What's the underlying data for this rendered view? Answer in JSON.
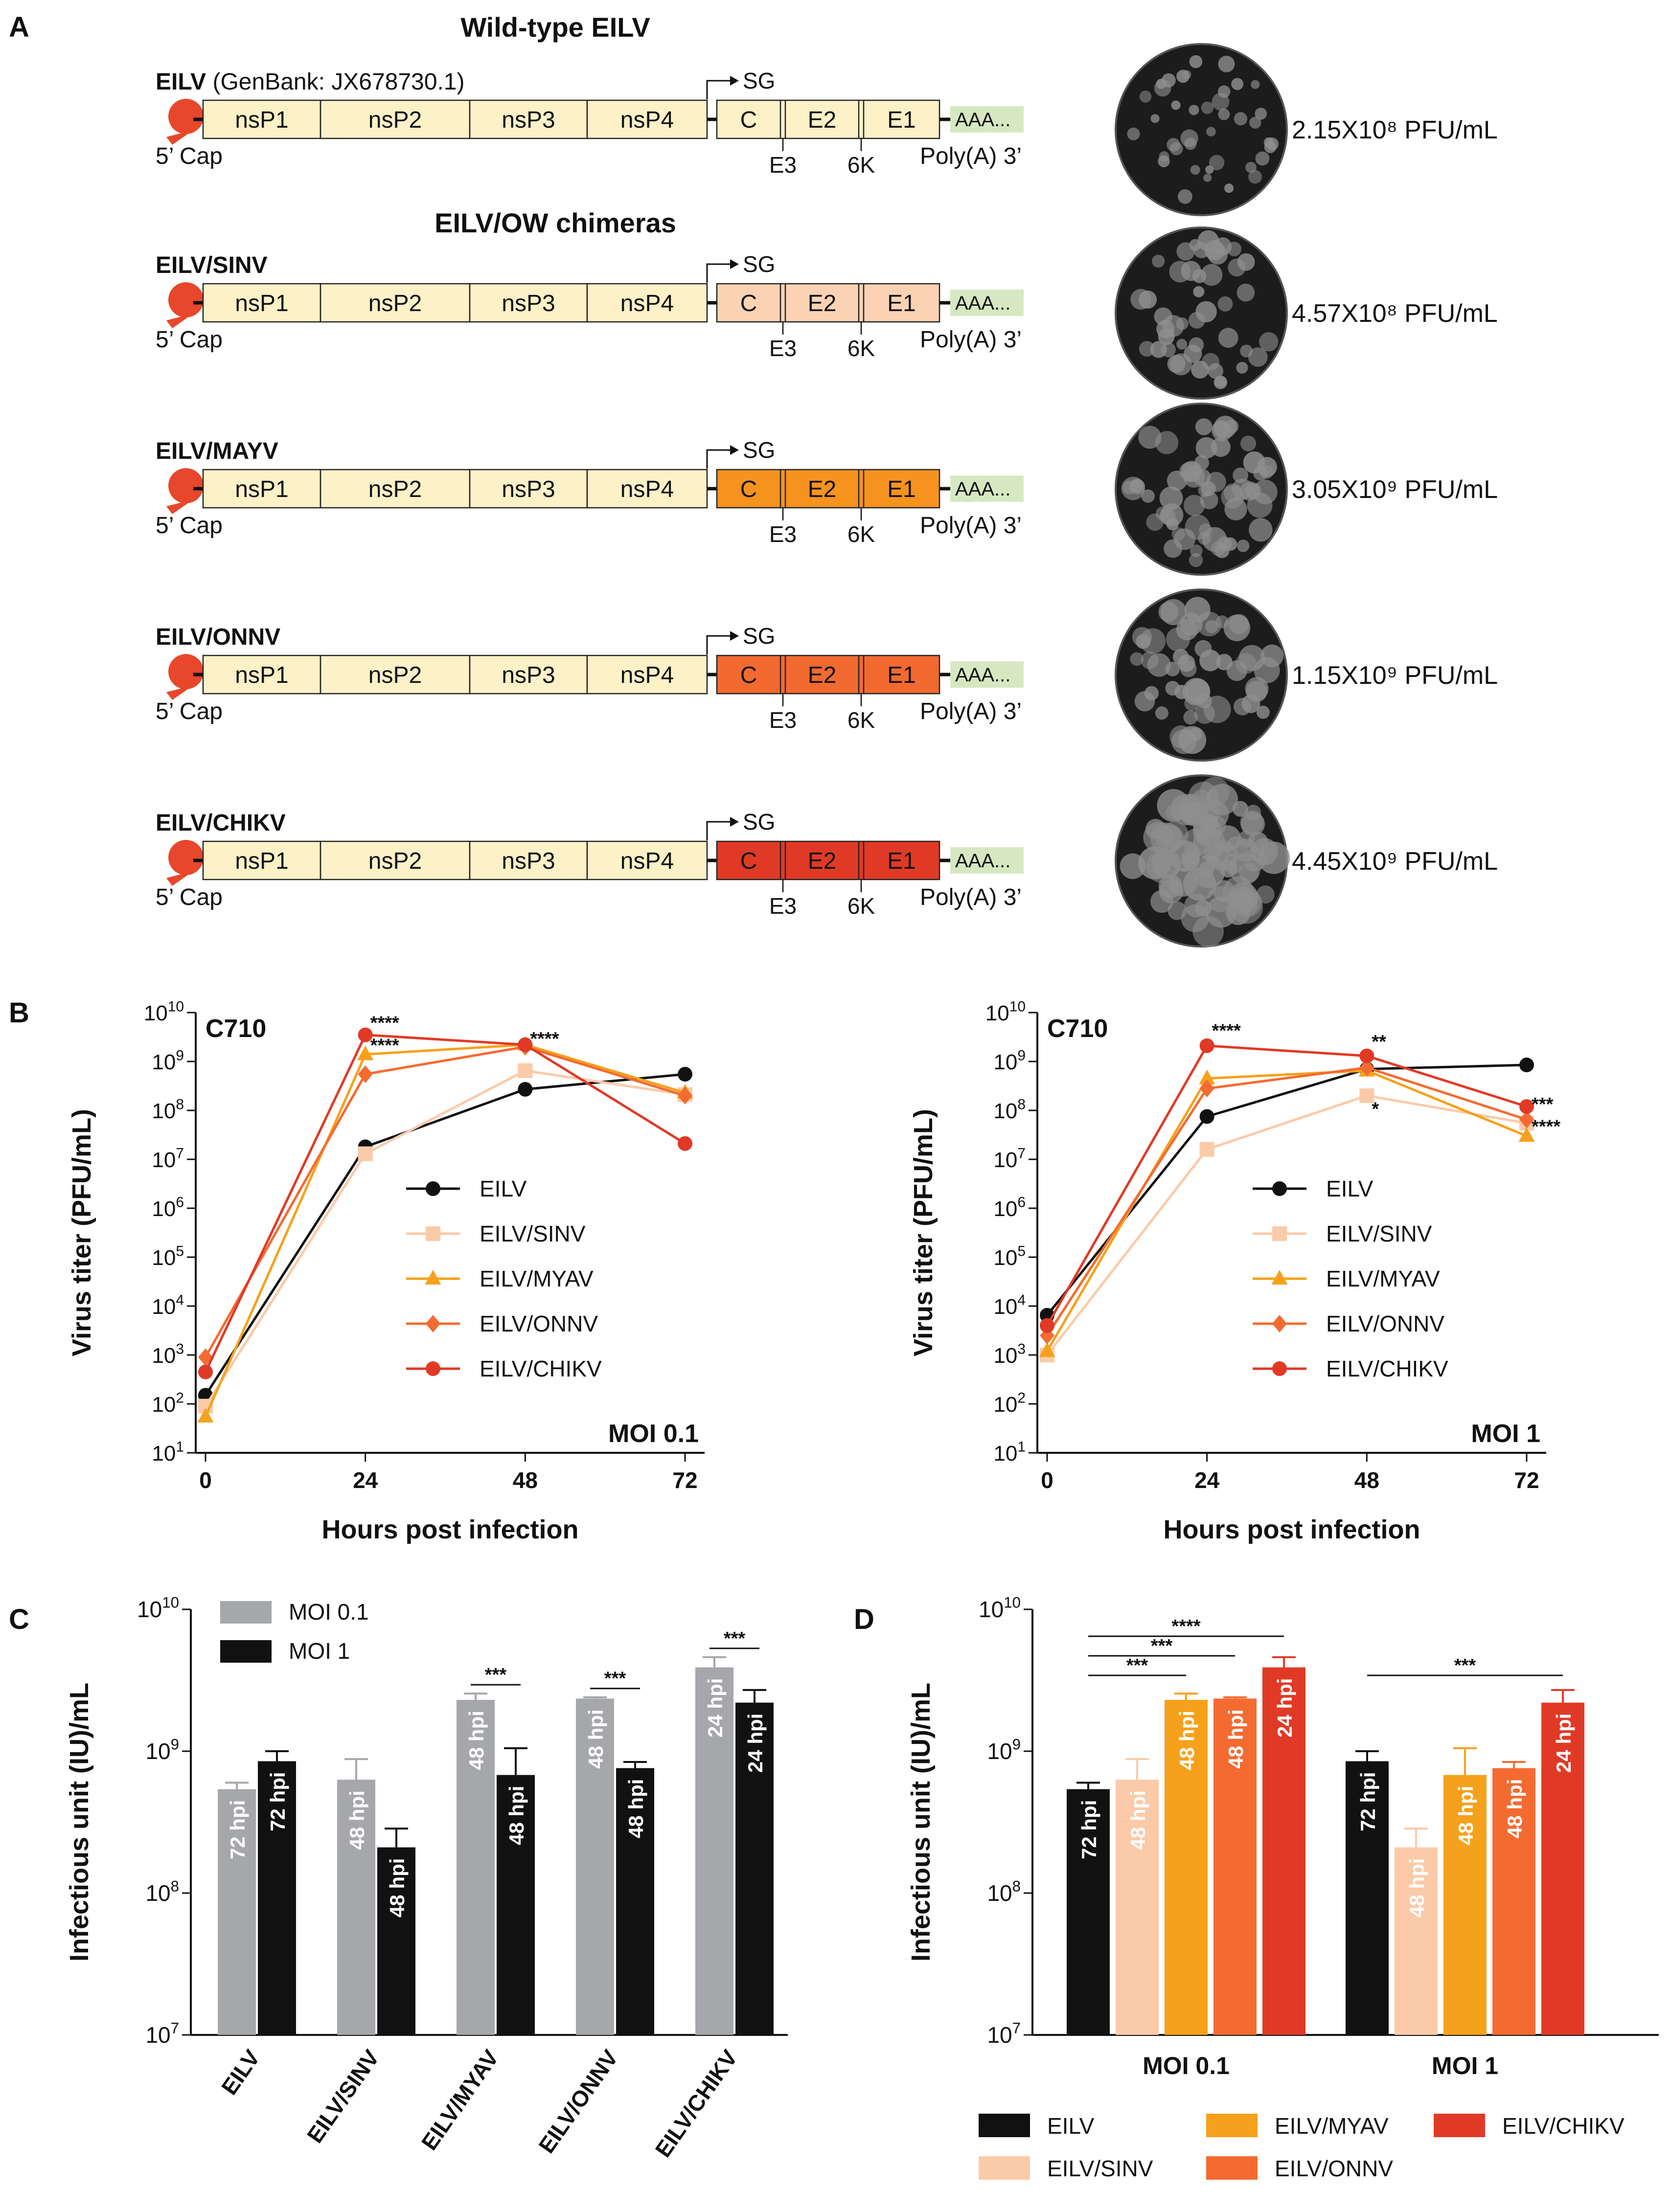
{
  "panel_labels": {
    "a": "A",
    "b": "B",
    "c": "C",
    "d": "D"
  },
  "genome": {
    "section_wt": "Wild-type EILV",
    "section_chimera": "EILV/OW chimeras",
    "wt_name": "EILV",
    "wt_genbank": "(GenBank: JX678730.1)",
    "cap_label": "5’ Cap",
    "polya_label": "Poly(A) 3’",
    "sg_label": "SG",
    "ns_genes": [
      "nsP1",
      "nsP2",
      "nsP3",
      "nsP4"
    ],
    "structural_genes": [
      "C",
      "E2",
      "E1"
    ],
    "below_labels": [
      "E3",
      "6K"
    ],
    "tail_label": "AAA...",
    "constructs": [
      {
        "name": "EILV",
        "color": "#fdf1c8",
        "titer": "2.15X10⁸ PFU/mL"
      },
      {
        "name": "EILV/SINV",
        "color": "#fbd3b4",
        "titer": "4.57X10⁸ PFU/mL"
      },
      {
        "name": "EILV/MAYV",
        "color": "#f6931e",
        "titer": "3.05X10⁹ PFU/mL"
      },
      {
        "name": "EILV/ONNV",
        "color": "#f26a30",
        "titer": "1.15X10⁹ PFU/mL"
      },
      {
        "name": "EILV/CHIKV",
        "color": "#e03a26",
        "titer": "4.45X10⁹ PFU/mL"
      }
    ]
  },
  "colors": {
    "EILV": "#111111",
    "EILV/SINV": "#fbcaa8",
    "EILV/MYAV": "#f6a11b",
    "EILV/ONNV": "#f46b31",
    "EILV/CHIKV": "#e03a26",
    "grey": "#a6a7ab",
    "black": "#111111"
  },
  "chart_data": [
    {
      "id": "B-left",
      "type": "line",
      "title": "C710",
      "annotation": "MOI 0.1",
      "xlabel": "Hours post infection",
      "ylabel": "Virus titer (PFU/mL)",
      "x": [
        0,
        24,
        48,
        72
      ],
      "xticks": [
        "0",
        "24",
        "48",
        "72"
      ],
      "yscale": "log",
      "ylim_exp": [
        1,
        10
      ],
      "series": [
        {
          "name": "EILV",
          "marker": "circle",
          "values": [
            150,
            18000000.0,
            270000000.0,
            550000000.0
          ]
        },
        {
          "name": "EILV/SINV",
          "marker": "square",
          "values": [
            90,
            13000000.0,
            650000000.0,
            210000000.0
          ]
        },
        {
          "name": "EILV/MYAV",
          "marker": "triangle",
          "values": [
            55,
            1400000000.0,
            2200000000.0,
            230000000.0
          ]
        },
        {
          "name": "EILV/ONNV",
          "marker": "diamond",
          "values": [
            900,
            550000000.0,
            2000000000.0,
            200000000.0
          ]
        },
        {
          "name": "EILV/CHIKV",
          "marker": "circle",
          "values": [
            450,
            3500000000.0,
            2200000000.0,
            21000000.0
          ]
        }
      ],
      "stars": [
        {
          "text": "****",
          "x": 24,
          "y": 4600000000.0
        },
        {
          "text": "****",
          "x": 24,
          "y": 1600000000.0
        },
        {
          "text": "****",
          "x": 48,
          "y": 2200000000.0
        }
      ]
    },
    {
      "id": "B-right",
      "type": "line",
      "title": "C710",
      "annotation": "MOI 1",
      "xlabel": "Hours post infection",
      "ylabel": "Virus titer (PFU/mL)",
      "x": [
        0,
        24,
        48,
        72
      ],
      "xticks": [
        "0",
        "24",
        "48",
        "72"
      ],
      "yscale": "log",
      "ylim_exp": [
        1,
        10
      ],
      "series": [
        {
          "name": "EILV",
          "marker": "circle",
          "values": [
            6500,
            75000000.0,
            700000000.0,
            850000000.0
          ]
        },
        {
          "name": "EILV/SINV",
          "marker": "square",
          "values": [
            1000,
            16000000.0,
            200000000.0,
            55000000.0
          ]
        },
        {
          "name": "EILV/MYAV",
          "marker": "triangle",
          "values": [
            1200,
            450000000.0,
            650000000.0,
            30000000.0
          ]
        },
        {
          "name": "EILV/ONNV",
          "marker": "diamond",
          "values": [
            2500,
            280000000.0,
            750000000.0,
            65000000.0
          ]
        },
        {
          "name": "EILV/CHIKV",
          "marker": "circle",
          "values": [
            4000,
            2100000000.0,
            1300000000.0,
            120000000.0
          ]
        }
      ],
      "stars": [
        {
          "text": "****",
          "x": 24,
          "y": 3200000000.0
        },
        {
          "text": "**",
          "x": 48,
          "y": 1900000000.0
        },
        {
          "text": "*",
          "x": 48,
          "y": 80000000.0
        },
        {
          "text": "***",
          "x": 72,
          "y": 100000000.0
        },
        {
          "text": "****",
          "x": 72,
          "y": 35000000.0
        }
      ]
    },
    {
      "id": "C",
      "type": "bar",
      "ylabel": "Infectious unit (IU)/mL",
      "yscale": "log",
      "ylim_exp": [
        7,
        10
      ],
      "categories": [
        "EILV",
        "EILV/SINV",
        "EILV/MYAV",
        "EILV/ONNV",
        "EILV/CHIKV"
      ],
      "series": [
        {
          "name": "MOI 0.1",
          "values": [
            540000000.0,
            630000000.0,
            2300000000.0,
            2350000000.0,
            3900000000.0
          ],
          "errors": [
            600000000.0,
            880000000.0,
            2550000000.0,
            2400000000.0,
            4600000000.0
          ],
          "labels": [
            "72 hpi",
            "48 hpi",
            "48 hpi",
            "48 hpi",
            "24 hpi"
          ]
        },
        {
          "name": "MOI 1",
          "values": [
            850000000.0,
            210000000.0,
            680000000.0,
            760000000.0,
            2200000000.0
          ],
          "errors": [
            1000000000.0,
            285000000.0,
            1050000000.0,
            840000000.0,
            2700000000.0
          ],
          "labels": [
            "72 hpi",
            "48 hpi",
            "48 hpi",
            "48 hpi",
            "24 hpi"
          ]
        }
      ],
      "sig": [
        "",
        "",
        "***",
        "***",
        "***"
      ]
    },
    {
      "id": "D",
      "type": "bar",
      "ylabel": "Infectious unit (IU)/mL",
      "yscale": "log",
      "ylim_exp": [
        7,
        10
      ],
      "categories": [
        "MOI 0.1",
        "MOI 1"
      ],
      "series": [
        {
          "name": "EILV",
          "values": [
            540000000.0,
            850000000.0
          ],
          "errors": [
            600000000.0,
            1000000000.0
          ],
          "labels": [
            "72 hpi",
            "72 hpi"
          ]
        },
        {
          "name": "EILV/SINV",
          "values": [
            630000000.0,
            210000000.0
          ],
          "errors": [
            880000000.0,
            285000000.0
          ],
          "labels": [
            "48 hpi",
            "48 hpi"
          ]
        },
        {
          "name": "EILV/MYAV",
          "values": [
            2300000000.0,
            680000000.0
          ],
          "errors": [
            2550000000.0,
            1050000000.0
          ],
          "labels": [
            "48 hpi",
            "48 hpi"
          ]
        },
        {
          "name": "EILV/ONNV",
          "values": [
            2350000000.0,
            760000000.0
          ],
          "errors": [
            2400000000.0,
            840000000.0
          ],
          "labels": [
            "48 hpi",
            "48 hpi"
          ]
        },
        {
          "name": "EILV/CHIKV",
          "values": [
            3900000000.0,
            2200000000.0
          ],
          "errors": [
            4600000000.0,
            2700000000.0
          ],
          "labels": [
            "24 hpi",
            "24 hpi"
          ]
        }
      ],
      "brackets": [
        {
          "group": 0,
          "from": 0,
          "to": 2,
          "text": "***"
        },
        {
          "group": 0,
          "from": 0,
          "to": 3,
          "text": "***"
        },
        {
          "group": 0,
          "from": 0,
          "to": 4,
          "text": "****"
        },
        {
          "group": 1,
          "from": 0,
          "to": 4,
          "text": "***"
        }
      ]
    }
  ]
}
